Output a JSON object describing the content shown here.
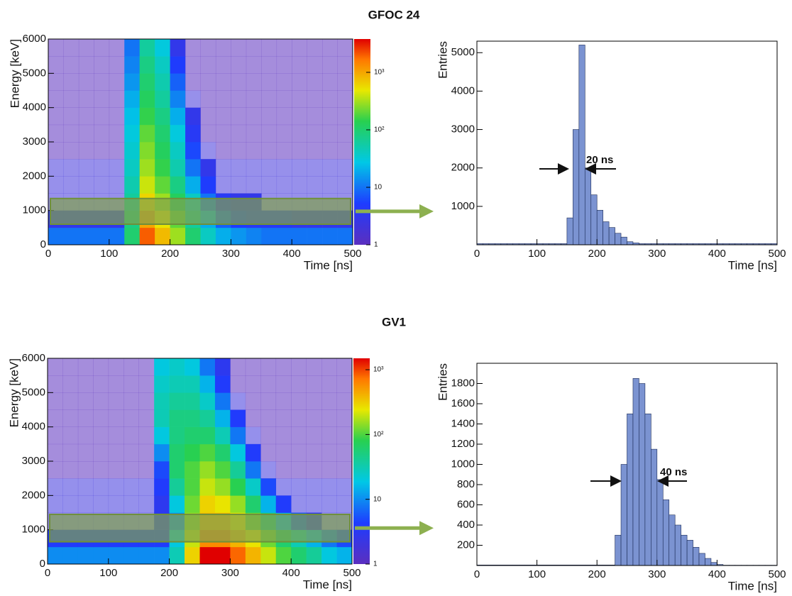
{
  "chart_data": [
    {
      "type": "heatmap",
      "title": "GFOC 24",
      "x_label": "Time [ns]",
      "y_label": "Energy [keV]",
      "xlim": [
        0,
        500
      ],
      "ylim": [
        0,
        6000
      ],
      "xticks": [
        0,
        100,
        200,
        300,
        400,
        500
      ],
      "yticks": [
        0,
        1000,
        2000,
        3000,
        4000,
        5000,
        6000
      ],
      "zlog": true,
      "zlim": [
        1,
        3800
      ],
      "zticks": [
        1,
        10,
        {
          "value": 100,
          "label": "10²"
        },
        {
          "value": 1000,
          "label": "10³"
        }
      ],
      "gate": [
        600,
        1350
      ],
      "z": [
        [
          10,
          10,
          10,
          10,
          10,
          100,
          2000,
          800,
          300,
          100,
          40,
          20,
          15,
          12,
          10,
          10,
          10,
          10,
          10,
          10
        ],
        [
          3,
          3,
          3,
          3,
          3,
          80,
          1000,
          500,
          200,
          60,
          20,
          8,
          5,
          4,
          4,
          4,
          3,
          3,
          3,
          3
        ],
        [
          2,
          2,
          2,
          2,
          2,
          60,
          600,
          300,
          120,
          40,
          10,
          4,
          3,
          3,
          2,
          2,
          2,
          2,
          2,
          2
        ],
        [
          2,
          2,
          2,
          2,
          2,
          50,
          400,
          200,
          80,
          20,
          5,
          2,
          2,
          2,
          2,
          2,
          2,
          2,
          2,
          2
        ],
        [
          2,
          2,
          2,
          2,
          2,
          40,
          300,
          150,
          50,
          10,
          3,
          2,
          2,
          2,
          2,
          2,
          2,
          2,
          2,
          2
        ],
        [
          1,
          1,
          1,
          1,
          1,
          35,
          250,
          120,
          40,
          6,
          2,
          1,
          1,
          1,
          1,
          1,
          1,
          1,
          1,
          1
        ],
        [
          1,
          1,
          1,
          1,
          1,
          30,
          200,
          100,
          30,
          4,
          1,
          1,
          1,
          1,
          1,
          1,
          1,
          1,
          1,
          1
        ],
        [
          1,
          1,
          1,
          1,
          1,
          25,
          150,
          80,
          20,
          3,
          1,
          1,
          1,
          1,
          1,
          1,
          1,
          1,
          1,
          1
        ],
        [
          1,
          1,
          1,
          1,
          1,
          20,
          120,
          60,
          12,
          2,
          1,
          1,
          1,
          1,
          1,
          1,
          1,
          1,
          1,
          1
        ],
        [
          1,
          1,
          1,
          1,
          1,
          15,
          100,
          50,
          8,
          1,
          1,
          1,
          1,
          1,
          1,
          1,
          1,
          1,
          1,
          1
        ],
        [
          1,
          1,
          1,
          1,
          1,
          12,
          80,
          40,
          5,
          1,
          1,
          1,
          1,
          1,
          1,
          1,
          1,
          1,
          1,
          1
        ],
        [
          1,
          1,
          1,
          1,
          1,
          10,
          60,
          30,
          3,
          1,
          1,
          1,
          1,
          1,
          1,
          1,
          1,
          1,
          1,
          1
        ]
      ]
    },
    {
      "type": "histogram",
      "x_label": "Time [ns]",
      "y_label": "Entries",
      "annotation": "20 ns",
      "color": "#7b93d1",
      "xlim": [
        0,
        500
      ],
      "ylim": [
        0,
        5300
      ],
      "xticks": [
        0,
        100,
        200,
        300,
        400,
        500
      ],
      "yticks": [
        1000,
        2000,
        3000,
        4000,
        5000
      ],
      "bins": [
        0,
        10,
        20,
        30,
        40,
        50,
        60,
        70,
        80,
        90,
        100,
        110,
        120,
        130,
        140,
        150,
        160,
        170,
        180,
        190,
        200,
        210,
        220,
        230,
        240,
        250,
        260,
        270,
        280,
        290,
        300,
        310,
        320,
        330,
        340,
        350,
        360,
        370,
        380,
        390,
        400,
        410,
        420,
        430,
        440,
        450,
        460,
        470,
        480,
        490,
        500
      ],
      "counts": [
        30,
        30,
        30,
        30,
        30,
        30,
        30,
        30,
        30,
        30,
        30,
        30,
        30,
        30,
        30,
        700,
        3000,
        5200,
        2000,
        1300,
        900,
        600,
        450,
        300,
        200,
        80,
        50,
        30,
        30,
        30,
        30,
        30,
        30,
        30,
        30,
        30,
        30,
        30,
        30,
        30,
        30,
        30,
        30,
        30,
        30,
        30,
        30,
        30,
        30,
        30
      ]
    },
    {
      "type": "heatmap",
      "title": "GV1",
      "x_label": "Time [ns]",
      "y_label": "Energy [keV]",
      "xlim": [
        0,
        500
      ],
      "ylim": [
        0,
        6000
      ],
      "xticks": [
        0,
        100,
        200,
        300,
        400,
        500
      ],
      "yticks": [
        0,
        1000,
        2000,
        3000,
        4000,
        5000,
        6000
      ],
      "zlog": true,
      "zlim": [
        1,
        1500
      ],
      "zticks": [
        1,
        10,
        {
          "value": 100,
          "label": "10²"
        },
        {
          "value": 1000,
          "label": "10³"
        }
      ],
      "gate": [
        650,
        1450
      ],
      "z": [
        [
          10,
          10,
          10,
          10,
          10,
          10,
          10,
          10,
          30,
          300,
          1500,
          1500,
          800,
          400,
          200,
          100,
          60,
          40,
          20,
          15
        ],
        [
          4,
          4,
          4,
          4,
          4,
          4,
          4,
          4,
          20,
          200,
          600,
          600,
          400,
          250,
          120,
          60,
          30,
          15,
          8,
          5
        ],
        [
          2,
          2,
          2,
          2,
          2,
          2,
          2,
          3,
          10,
          150,
          400,
          400,
          250,
          120,
          50,
          15,
          6,
          3,
          2,
          2
        ],
        [
          2,
          2,
          2,
          2,
          2,
          2,
          2,
          3,
          20,
          120,
          300,
          250,
          150,
          60,
          15,
          4,
          2,
          2,
          2,
          2
        ],
        [
          2,
          2,
          2,
          2,
          2,
          2,
          2,
          4,
          40,
          100,
          200,
          150,
          80,
          25,
          5,
          2,
          2,
          2,
          2,
          2
        ],
        [
          1,
          1,
          1,
          1,
          1,
          1,
          1,
          5,
          60,
          100,
          150,
          100,
          40,
          8,
          2,
          1,
          1,
          1,
          1,
          1
        ],
        [
          1,
          1,
          1,
          1,
          1,
          1,
          1,
          10,
          60,
          80,
          100,
          60,
          20,
          4,
          1,
          1,
          1,
          1,
          1,
          1
        ],
        [
          1,
          1,
          1,
          1,
          1,
          1,
          1,
          20,
          50,
          60,
          60,
          30,
          8,
          2,
          1,
          1,
          1,
          1,
          1,
          1
        ],
        [
          1,
          1,
          1,
          1,
          1,
          1,
          1,
          30,
          50,
          50,
          40,
          15,
          4,
          1,
          1,
          1,
          1,
          1,
          1,
          1
        ],
        [
          1,
          1,
          1,
          1,
          1,
          1,
          1,
          30,
          40,
          40,
          25,
          8,
          2,
          1,
          1,
          1,
          1,
          1,
          1,
          1
        ],
        [
          1,
          1,
          1,
          1,
          1,
          1,
          1,
          25,
          30,
          30,
          15,
          4,
          1,
          1,
          1,
          1,
          1,
          1,
          1,
          1
        ],
        [
          1,
          1,
          1,
          1,
          1,
          1,
          1,
          20,
          25,
          20,
          8,
          3,
          1,
          1,
          1,
          1,
          1,
          1,
          1,
          1
        ]
      ]
    },
    {
      "type": "histogram",
      "x_label": "Time [ns]",
      "y_label": "Entries",
      "annotation": "40 ns",
      "color": "#7b93d1",
      "xlim": [
        0,
        500
      ],
      "ylim": [
        0,
        2000
      ],
      "xticks": [
        0,
        100,
        200,
        300,
        400,
        500
      ],
      "yticks": [
        200,
        400,
        600,
        800,
        1000,
        1200,
        1400,
        1600,
        1800
      ],
      "bins": [
        0,
        10,
        20,
        30,
        40,
        50,
        60,
        70,
        80,
        90,
        100,
        110,
        120,
        130,
        140,
        150,
        160,
        170,
        180,
        190,
        200,
        210,
        220,
        230,
        240,
        250,
        260,
        270,
        280,
        290,
        300,
        310,
        320,
        330,
        340,
        350,
        360,
        370,
        380,
        390,
        400,
        410,
        420,
        430,
        440,
        450,
        460,
        470,
        480,
        490,
        500
      ],
      "counts": [
        5,
        5,
        5,
        5,
        5,
        5,
        5,
        5,
        5,
        5,
        5,
        5,
        5,
        5,
        5,
        5,
        5,
        5,
        5,
        5,
        5,
        5,
        5,
        300,
        1000,
        1500,
        1850,
        1800,
        1500,
        1150,
        850,
        650,
        500,
        400,
        300,
        250,
        180,
        120,
        70,
        30,
        10,
        3,
        3,
        3,
        3,
        3,
        3,
        3,
        3,
        3
      ]
    }
  ]
}
